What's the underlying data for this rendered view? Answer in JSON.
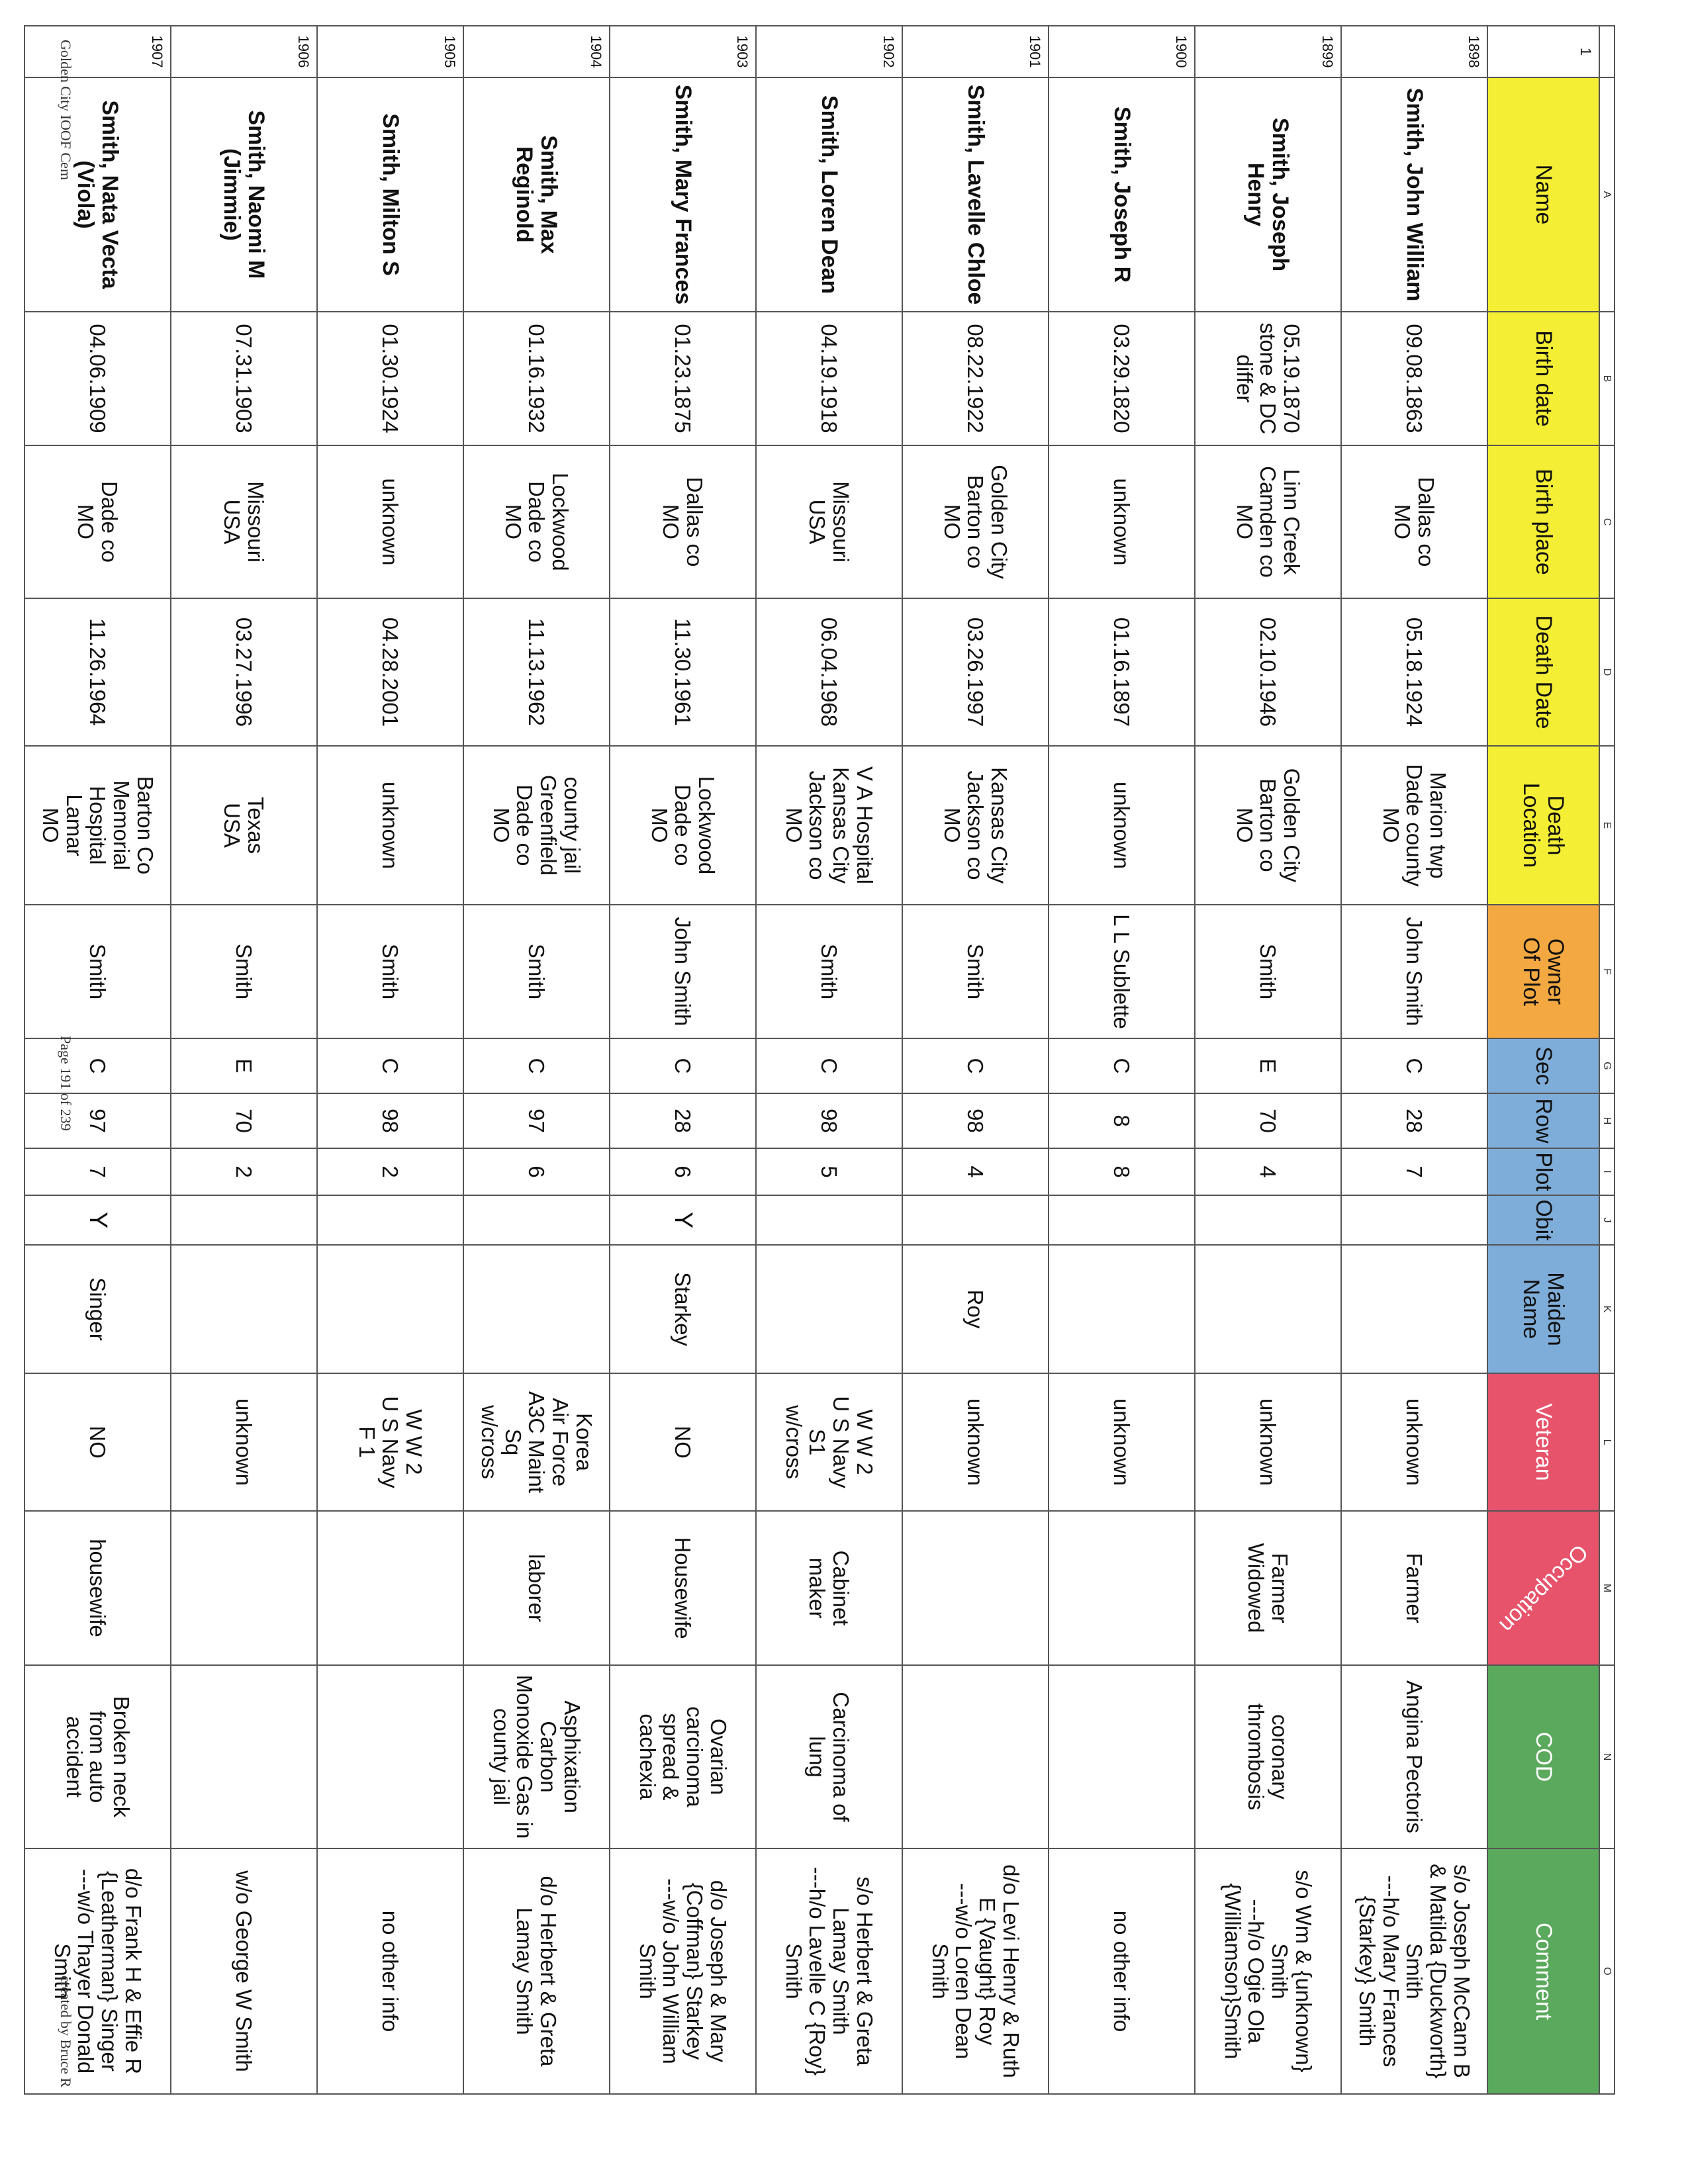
{
  "column_letters": [
    "",
    "A",
    "B",
    "C",
    "D",
    "E",
    "F",
    "G",
    "H",
    "I",
    "J",
    "K",
    "L",
    "M",
    "N",
    "O"
  ],
  "header_row_number": "1",
  "headers": [
    "Name",
    "Birth date",
    "Birth place",
    "Death Date",
    "Death\nLocation",
    "Owner\nOf Plot",
    "Sec",
    "Row",
    "Plot",
    "Obit",
    "Maiden\nName",
    "Veteran",
    "Occupation",
    "COD",
    "Comment"
  ],
  "header_colors": {
    "yellow": "#f4ee34",
    "orange": "#f3a841",
    "blue": "#7fadd9",
    "red": "#e6536b",
    "green": "#5aa95c"
  },
  "rows": [
    {
      "num": "1898",
      "cells": [
        "Smith, John William",
        "09.08.1863",
        "Dallas co\nMO",
        "05.18.1924",
        "Marion twp\nDade county\nMO",
        "John Smith",
        "C",
        "28",
        "7",
        "",
        "",
        "unknown",
        "Farmer",
        "Angina Pectoris",
        "s/o Joseph McCann B\n& Matilda {Duckworth}\nSmith\n---h/o Mary Frances\n{Starkey} Smith"
      ]
    },
    {
      "num": "1899",
      "cells": [
        "Smith, Joseph\nHenry",
        "05.19.1870\nstone & DC\ndiffer",
        "Linn Creek\nCamden co\nMO",
        "02.10.1946",
        "Golden City\nBarton co\nMO",
        "Smith",
        "E",
        "70",
        "4",
        "",
        "",
        "unknown",
        "Farmer\nWidowed",
        "coronary\nthrombosis",
        "s/o Wm & {unknown}\nSmith\n---h/o Ogie Ola\n{Williamson}Smith"
      ]
    },
    {
      "num": "1900",
      "cells": [
        "Smith, Joseph R",
        "03.29.1820",
        "unknown",
        "01.16.1897",
        "unknown",
        "L L Sublette",
        "C",
        "8",
        "8",
        "",
        "",
        "unknown",
        "",
        "",
        "no other info"
      ]
    },
    {
      "num": "1901",
      "cells": [
        "Smith, Lavelle Chloe",
        "08.22.1922",
        "Golden City\nBarton co\nMO",
        "03.26.1997",
        "Kansas City\nJackson co\nMO",
        "Smith",
        "C",
        "98",
        "4",
        "",
        "Roy",
        "unknown",
        "",
        "",
        "d/o Levi Henry & Ruth\nE {Vaught} Roy\n---w/o Loren Dean\nSmith"
      ]
    },
    {
      "num": "1902",
      "cells": [
        "Smith, Loren Dean",
        "04.19.1918",
        "Missouri\nUSA",
        "06.04.1968",
        "V A Hospital\nKansas City\nJackson co\nMO",
        "Smith",
        "C",
        "98",
        "5",
        "",
        "",
        "W W 2\nU S Navy\nS1\nw/cross",
        "Cabinet\nmaker",
        "Carcinoma of\nlung",
        "s/o Herbert & Greta\nLamay Smith\n---h/o Lavelle C {Roy}\nSmith"
      ]
    },
    {
      "num": "1903",
      "cells": [
        "Smith, Mary Frances",
        "01.23.1875",
        "Dallas co\nMO",
        "11.30.1961",
        "Lockwood\nDade co\nMO",
        "John Smith",
        "C",
        "28",
        "6",
        "Y",
        "Starkey",
        "NO",
        "Housewife",
        "Ovarian\ncarcinoma\nspread &\ncachexia",
        "d/o Joseph & Mary\n{Coffman} Starkey\n---w/o John William\nSmith"
      ]
    },
    {
      "num": "1904",
      "cells": [
        "Smith, Max\nReginold",
        "01.16.1932",
        "Lockwood\nDade co\nMO",
        "11.13.1962",
        "county jail\nGreenfield\nDade co\nMO",
        "Smith",
        "C",
        "97",
        "6",
        "",
        "",
        "Korea\nAir Force\nA3C Maint\nSq\nw/cross",
        "laborer",
        "Asphixation\nCarbon\nMonoxide Gas in\ncounty jail",
        "d/o Herbert & Greta\nLamay Smith"
      ]
    },
    {
      "num": "1905",
      "cells": [
        "Smith, Milton S",
        "01.30.1924",
        "unknown",
        "04.28.2001",
        "unknown",
        "Smith",
        "C",
        "98",
        "2",
        "",
        "",
        "W W 2\nU S Navy\nF 1",
        "",
        "",
        "no other info"
      ]
    },
    {
      "num": "1906",
      "cells": [
        "Smith, Naomi M\n(Jimmie)",
        "07.31.1903",
        "Missouri\nUSA",
        "03.27.1996",
        "Texas\nUSA",
        "Smith",
        "E",
        "70",
        "2",
        "",
        "",
        "unknown",
        "",
        "",
        "w/o George W Smith"
      ]
    },
    {
      "num": "1907",
      "cells": [
        "Smith, Nata Vecta\n(Viola)",
        "04.06.1909",
        "Dade co\nMO",
        "11.26.1964",
        "Barton Co\nMemorial\nHospital\nLamar\nMO",
        "Smith",
        "C",
        "97",
        "7",
        "Y",
        "Singer",
        "NO",
        "housewife",
        "Broken neck\nfrom auto\naccident",
        "d/o Frank H & Effie R\n{Leatherman} Singer\n---w/o Thayer Donald\nSmith"
      ]
    }
  ],
  "footer": {
    "left": "Golden City IOOF Cem",
    "center": "Page 191 of 239",
    "right": "created by Bruce R"
  }
}
